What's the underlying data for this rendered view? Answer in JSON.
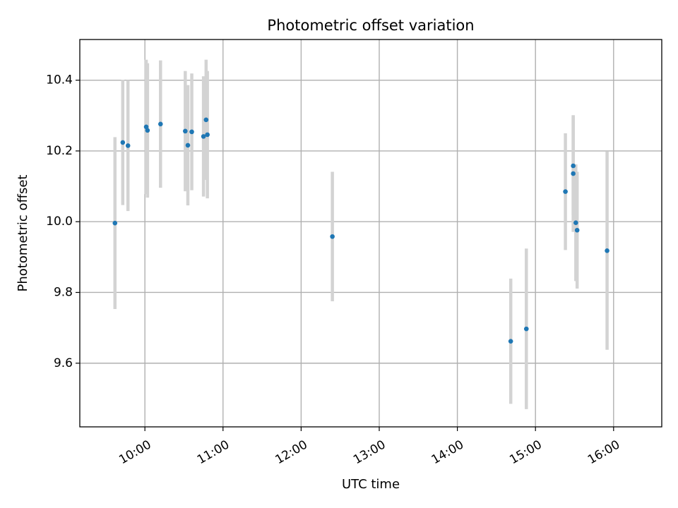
{
  "chart_data": {
    "type": "scatter",
    "title": "Photometric offset variation",
    "xlabel": "UTC time",
    "ylabel": "Photometric offset",
    "x_axis_type": "time",
    "xlim": [
      "09:10",
      "16:37"
    ],
    "ylim": [
      9.42,
      10.515
    ],
    "x_ticks": [
      "10:00",
      "11:00",
      "12:00",
      "13:00",
      "14:00",
      "15:00",
      "16:00"
    ],
    "y_ticks": [
      9.6,
      9.8,
      10.0,
      10.2,
      10.4
    ],
    "y_tick_labels": [
      "9.6",
      "9.8",
      "10.0",
      "10.2",
      "10.4"
    ],
    "grid": true,
    "legend": "none",
    "tick_label_rotation_x": 30,
    "colors": {
      "points": "#1f77b4",
      "error_bars": "#d3d3d3",
      "grid": "#b0b0b0"
    },
    "series": [
      {
        "x": [
          "09:37",
          "09:43",
          "09:47",
          "10:01",
          "10:02",
          "10:12",
          "10:31",
          "10:33",
          "10:36",
          "10:45",
          "10:47",
          "10:48",
          "15:23",
          "15:29",
          "15:29",
          "15:31",
          "15:32",
          "15:55",
          "12:24",
          "14:41",
          "14:53"
        ],
        "y": [
          9.996,
          10.224,
          10.215,
          10.268,
          10.258,
          10.276,
          10.256,
          10.216,
          10.254,
          10.241,
          10.288,
          10.246,
          10.085,
          10.136,
          10.158,
          9.997,
          9.976,
          9.918,
          9.958,
          9.662,
          9.697
        ],
        "yerr": [
          0.243,
          0.177,
          0.185,
          0.19,
          0.19,
          0.18,
          0.17,
          0.17,
          0.165,
          0.17,
          0.17,
          0.18,
          0.165,
          0.165,
          0.14,
          0.165,
          0.165,
          0.28,
          0.183,
          0.177,
          0.227
        ]
      }
    ]
  }
}
